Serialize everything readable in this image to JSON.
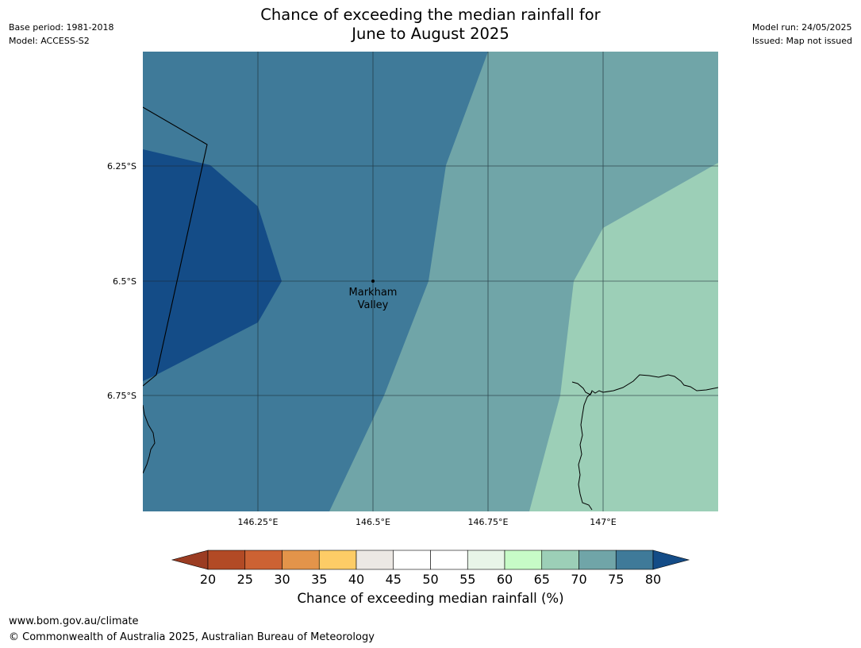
{
  "meta": {
    "base_period": "Base period: 1981-2018",
    "model": "Model: ACCESS-S2",
    "model_run": "Model run: 24/05/2025",
    "issued": "Issued: Map not issued"
  },
  "title": {
    "line1": "Chance of exceeding the median rainfall for",
    "line2": "June to August 2025"
  },
  "map": {
    "lat_labels": [
      "6.25°S",
      "6.5°S",
      "6.75°S"
    ],
    "lon_labels": [
      "146.25°E",
      "146.5°E",
      "146.75°E",
      "147°E"
    ],
    "place": {
      "name_line1": "Markham",
      "name_line2": "Valley"
    }
  },
  "colorbar": {
    "title": "Chance of exceeding median rainfall (%)",
    "ticks": [
      "20",
      "25",
      "30",
      "35",
      "40",
      "45",
      "50",
      "55",
      "60",
      "65",
      "70",
      "75",
      "80"
    ],
    "low_extend_color": "#9b3c22",
    "high_extend_color": "#144c87",
    "bin_colors": [
      "#b24a25",
      "#cc6233",
      "#e3944a",
      "#fdcc66",
      "#ece8e4",
      "#ffffff",
      "#ffffff",
      "#e8f5e8",
      "#c7fbc7",
      "#9ccfb7",
      "#70a5a8",
      "#3f7a99"
    ]
  },
  "colors": {
    "band_75_80": "#3f7a99",
    "band_80_plus": "#144c87",
    "band_70_75": "#70a5a8",
    "band_65_70": "#9ccfb7"
  },
  "footer": {
    "url": "www.bom.gov.au/climate",
    "copyright": "© Commonwealth of Australia 2025, Australian Bureau of Meteorology"
  }
}
